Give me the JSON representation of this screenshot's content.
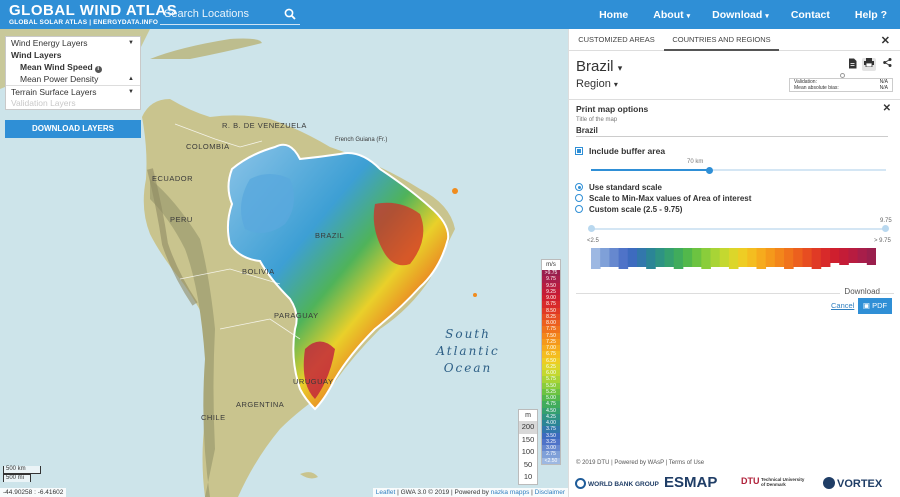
{
  "header": {
    "title": "GLOBAL WIND ATLAS",
    "subtitle": "GLOBAL SOLAR ATLAS | ENERGYDATA.INFO",
    "search_placeholder": "Search Locations",
    "nav": [
      {
        "label": "Home",
        "caret": ""
      },
      {
        "label": "About",
        "caret": "▾"
      },
      {
        "label": "Download",
        "caret": "▾"
      },
      {
        "label": "Contact",
        "caret": ""
      },
      {
        "label": "Help ?",
        "caret": ""
      }
    ],
    "accent": "#2f8fd6"
  },
  "layers": {
    "wind_energy": "Wind Energy Layers",
    "wind_layers": "Wind Layers",
    "mean_wind_speed": "Mean Wind Speed",
    "info_mark": "i",
    "mean_power_density": "Mean Power Density",
    "terrain": "Terrain Surface Layers",
    "validation": "Validation Layers",
    "download_button": "DOWNLOAD LAYERS"
  },
  "map_labels": [
    {
      "name": "r-b-de-venezuela",
      "text": "R. B. DE VENEZUELA"
    },
    {
      "name": "colombia",
      "text": "COLOMBIA"
    },
    {
      "name": "french-guiana",
      "text": "French Guiana (Fr.)"
    },
    {
      "name": "ecuador",
      "text": "ECUADOR"
    },
    {
      "name": "peru",
      "text": "PERU"
    },
    {
      "name": "brazil",
      "text": "BRAZIL"
    },
    {
      "name": "bolivia",
      "text": "BOLIVIA"
    },
    {
      "name": "paraguay",
      "text": "PARAGUAY"
    },
    {
      "name": "chile",
      "text": "CHILE"
    },
    {
      "name": "argentina",
      "text": "ARGENTINA"
    },
    {
      "name": "uruguay",
      "text": "URUGUAY"
    }
  ],
  "ocean_label": [
    "South",
    "Atlantic",
    "Ocean"
  ],
  "legend": {
    "unit": "m/s",
    "items": [
      {
        "label": ">9.75",
        "color": "#9a1f4d"
      },
      {
        "label": "9.75",
        "color": "#a81e4a"
      },
      {
        "label": "9.50",
        "color": "#b81c40"
      },
      {
        "label": "9.25",
        "color": "#c41c37"
      },
      {
        "label": "9.00",
        "color": "#cf1f2e"
      },
      {
        "label": "8.75",
        "color": "#d82a2a"
      },
      {
        "label": "8.50",
        "color": "#e03a25"
      },
      {
        "label": "8.25",
        "color": "#e74d21"
      },
      {
        "label": "8.00",
        "color": "#ec601e"
      },
      {
        "label": "7.75",
        "color": "#f0731c"
      },
      {
        "label": "7.50",
        "color": "#f3861b"
      },
      {
        "label": "7.25",
        "color": "#f5991b"
      },
      {
        "label": "7.00",
        "color": "#f6ab1d"
      },
      {
        "label": "6.75",
        "color": "#f4bd20"
      },
      {
        "label": "6.50",
        "color": "#eecd24"
      },
      {
        "label": "6.25",
        "color": "#dcd62a"
      },
      {
        "label": "6.00",
        "color": "#c4d830"
      },
      {
        "label": "5.75",
        "color": "#a8d436"
      },
      {
        "label": "5.50",
        "color": "#8acd3b"
      },
      {
        "label": "5.25",
        "color": "#6cc341"
      },
      {
        "label": "5.00",
        "color": "#52b84b"
      },
      {
        "label": "4.75",
        "color": "#40ac5c"
      },
      {
        "label": "4.50",
        "color": "#35a06f"
      },
      {
        "label": "4.25",
        "color": "#2e9383"
      },
      {
        "label": "4.00",
        "color": "#2b8596"
      },
      {
        "label": "3.75",
        "color": "#3277ac"
      },
      {
        "label": "3.50",
        "color": "#3d6bbf"
      },
      {
        "label": "3.25",
        "color": "#4f73c8"
      },
      {
        "label": "3.00",
        "color": "#6688cf"
      },
      {
        "label": "2.75",
        "color": "#7fa0d8"
      },
      {
        "label": "<2.50",
        "color": "#9db8e2"
      }
    ]
  },
  "height_selector": {
    "unit": "m",
    "options": [
      "200",
      "150",
      "100",
      "50",
      "10"
    ],
    "selected": "200"
  },
  "map_close": "✕",
  "scale": {
    "km": "500 km",
    "mi": "500 mi"
  },
  "coords": "-44.90258 : -6.41602",
  "attribution": {
    "leaflet": "Leaflet",
    "gwa": " | GWA 3.0 © 2019 | Powered by ",
    "nazka": "nazka mapps",
    "sep": " | ",
    "disclaimer": "Disclaimer"
  },
  "panel": {
    "tabs": [
      "CUSTOMIZED AREAS",
      "COUNTRIES AND REGIONS"
    ],
    "active_tab": 1,
    "close": "✕",
    "country": "Brazil",
    "country_caret": "▾",
    "region": "Region",
    "region_caret": "▾",
    "validation": [
      {
        "label": "Validation:",
        "value": "N/A"
      },
      {
        "label": "Mean absolute bias:",
        "value": "N/A"
      }
    ],
    "print_options": {
      "title": "Print map options",
      "map_title_label": "Title of the map",
      "map_title_value": "Brazil",
      "buffer_checkbox": "Include buffer area",
      "buffer_value": "70 km",
      "buffer_fraction": 0.4,
      "radio_standard": "Use standard scale",
      "radio_minmax": "Scale to Min-Max values of Area of interest",
      "radio_custom": "Custom scale (2.5 - 9.75)",
      "range_min": "<2.5",
      "range_max": "> 9.75",
      "range_top": "9.75",
      "download_label": "Download",
      "cancel": "Cancel",
      "pdf": "PDF"
    },
    "footer": "© 2019  DTU  |  Powered by WAsP  |  Terms of Use",
    "logos": [
      "WORLD BANK GROUP",
      "ESMAP",
      "DTU",
      "Technical University of Denmark",
      "VORTEX"
    ]
  }
}
